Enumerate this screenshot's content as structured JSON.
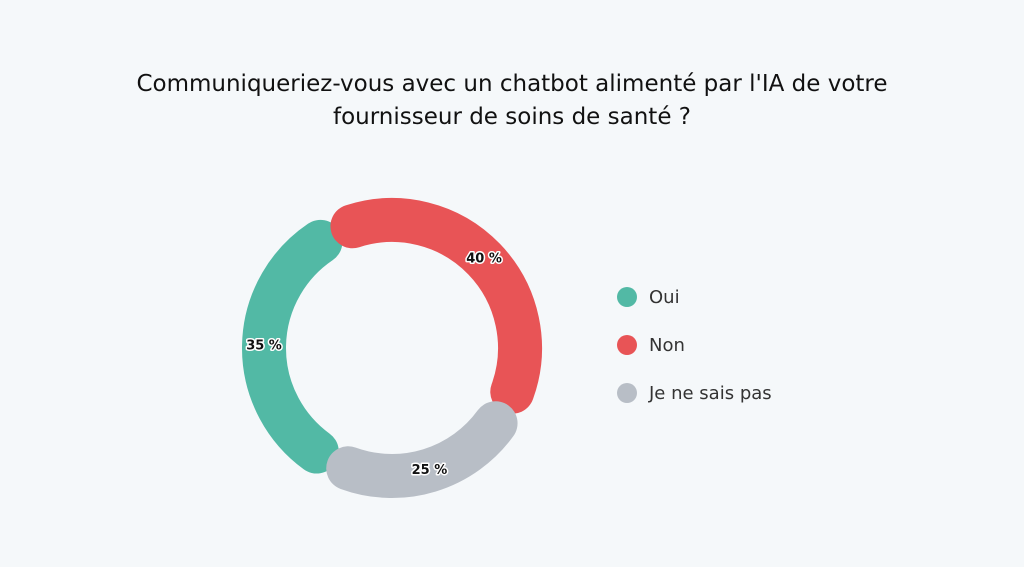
{
  "chart_data": {
    "type": "donut",
    "title": "Communiqueriez-vous avec un chatbot alimenté par l'IA de votre fournisseur de soins de santé ?",
    "categories": [
      "Oui",
      "Non",
      "Je ne sais pas"
    ],
    "values": [
      35,
      40,
      25
    ],
    "value_labels": [
      "35 %",
      "40 %",
      "25 %"
    ],
    "colors": [
      "#52b9a5",
      "#e85456",
      "#b8bec6"
    ],
    "legend": "right"
  }
}
